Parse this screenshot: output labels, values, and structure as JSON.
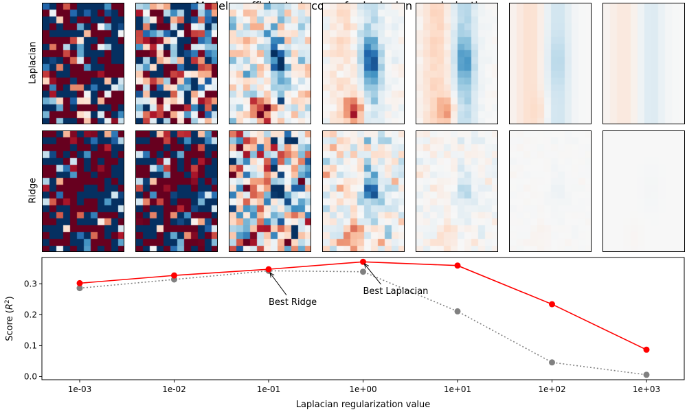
{
  "title": "Model coefficients / scores for laplacian regularization",
  "rows": [
    {
      "label": "Laplacian"
    },
    {
      "label": "Ridge"
    }
  ],
  "heatmap_strengths": [
    0.001,
    0.01,
    0.1,
    1.0,
    10.0,
    100.0,
    1000.0
  ],
  "colors": {
    "laplacian_series": "#ff0000",
    "ridge_series": "#808080",
    "colormap": "RdBu_r"
  },
  "chart_data": {
    "type": "line",
    "x": [
      0.001,
      0.01,
      0.1,
      1,
      10,
      100,
      1000
    ],
    "x_tick_labels": [
      "1e-03",
      "1e-02",
      "1e-01",
      "1e+00",
      "1e+01",
      "1e+02",
      "1e+03"
    ],
    "x_scale": "log",
    "xlabel": "Laplacian regularization value",
    "ylabel": "Score ($R^2$)",
    "ylim": [
      -0.01,
      0.385
    ],
    "y_ticks": [
      0.0,
      0.1,
      0.2,
      0.3
    ],
    "y_tick_labels": [
      "0.0",
      "0.1",
      "0.2",
      "0.3"
    ],
    "grid": false,
    "series": [
      {
        "key": "laplacian",
        "values": [
          0.302,
          0.327,
          0.347,
          0.371,
          0.359,
          0.234,
          0.087
        ],
        "style": "solid",
        "color": "#ff0000"
      },
      {
        "key": "ridge",
        "values": [
          0.286,
          0.314,
          0.342,
          0.339,
          0.211,
          0.046,
          0.006
        ],
        "style": "dotted",
        "color": "#808080"
      }
    ],
    "annotations": [
      {
        "text": "Best Ridge",
        "x": 0.1,
        "y": 0.342,
        "text_x": 0.1,
        "text_y": 0.25
      },
      {
        "text": "Best Laplacian",
        "x": 1,
        "y": 0.371,
        "text_x": 1,
        "text_y": 0.285
      }
    ]
  }
}
